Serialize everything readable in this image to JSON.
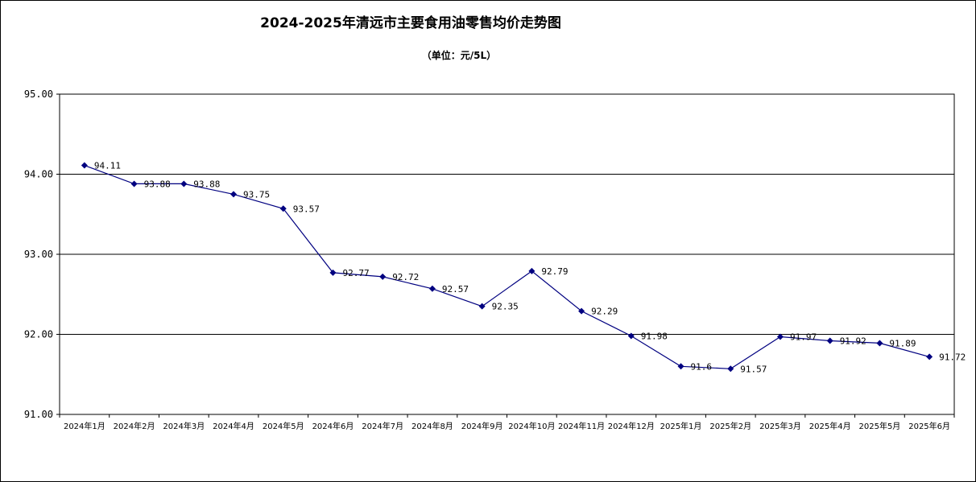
{
  "chart_data": {
    "type": "line",
    "title": "2024-2025年清远市主要食用油零售均价走势图",
    "subtitle": "（单位：元/5L）",
    "xlabel": "",
    "ylabel": "",
    "categories": [
      "2024年1月",
      "2024年2月",
      "2024年3月",
      "2024年4月",
      "2024年5月",
      "2024年6月",
      "2024年7月",
      "2024年8月",
      "2024年9月",
      "2024年10月",
      "2024年11月",
      "2024年12月",
      "2025年1月",
      "2025年2月",
      "2025年3月",
      "2025年4月",
      "2025年5月",
      "2025年6月"
    ],
    "series": [
      {
        "values": [
          94.11,
          93.88,
          93.88,
          93.75,
          93.57,
          92.77,
          92.72,
          92.57,
          92.35,
          92.79,
          92.29,
          91.98,
          91.6,
          91.57,
          91.97,
          91.92,
          91.89,
          91.72
        ],
        "labels": [
          "94.11",
          "93.88",
          "93.88",
          "93.75",
          "93.57",
          "92.77",
          "92.72",
          "92.57",
          "92.35",
          "92.79",
          "92.29",
          "91.98",
          "91.6",
          "91.57",
          "91.97",
          "91.92",
          "91.89",
          "91.72"
        ],
        "color": "#000080"
      }
    ],
    "ylim": [
      91,
      95
    ],
    "yticks": [
      "91.00",
      "92.00",
      "93.00",
      "94.00",
      "95.00"
    ],
    "grid": true,
    "legend": "none"
  }
}
